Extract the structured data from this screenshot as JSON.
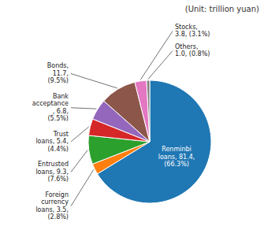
{
  "chart_data": {
    "type": "pie",
    "title": "(Unit: trillion yuan)",
    "categories": [
      "Renminbi\nloans, 81.4,\n(66.3%)",
      "Foreign\ncurrency\nloans, 3.5,\n(2.8%)",
      "Entrusted\nloans, 9.3,\n(7.6%)",
      "Trust\nloans, 5.4,\n(4.4%)",
      "Bank\nacceptance\n, 6.8,\n(5.5%)",
      "Bonds,\n11.7,\n(9.5%)",
      "Stocks,\n3.8, (3.1%)",
      "Others,\n1.0, (0.8%)"
    ],
    "values": [
      81.4,
      3.5,
      9.3,
      5.4,
      6.8,
      11.7,
      3.8,
      1.0
    ]
  }
}
